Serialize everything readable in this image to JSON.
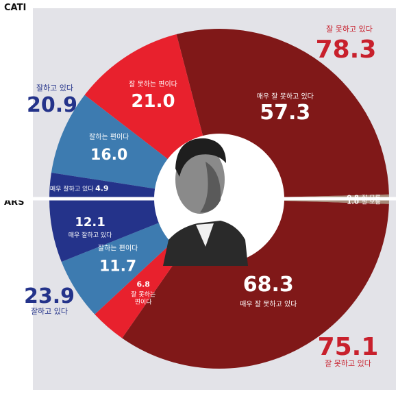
{
  "sections": {
    "top": "CATI",
    "bottom": "ARS"
  },
  "colors": {
    "very_negative": "#801818",
    "negative": "#e8212d",
    "positive": "#3d7bb0",
    "very_positive": "#24338a",
    "unknown": "#a88c7a",
    "background": "#e3e3e8"
  },
  "chart_data": [
    {
      "type": "pie",
      "half": "top",
      "survey": "CATI",
      "slices": [
        {
          "key": "very_negative",
          "label": "매우 잘 못하고 있다",
          "value": 57.3,
          "value_label": "57.3"
        },
        {
          "key": "negative",
          "label": "잘 못하는 편이다",
          "value": 21.0,
          "value_label": "21.0"
        },
        {
          "key": "positive",
          "label": "잘하는 편이다",
          "value": 16.0,
          "value_label": "16.0"
        },
        {
          "key": "very_positive",
          "label": "매우 잘하고 있다",
          "value": 4.9,
          "value_label": "4.9"
        },
        {
          "key": "unknown",
          "label": "잘 모름",
          "value": 0.8,
          "value_label": "0.8"
        }
      ],
      "totals": {
        "negative": {
          "label": "잘 못하고 있다",
          "value": 78.3,
          "value_label": "78.3"
        },
        "positive": {
          "label": "잘하고 있다",
          "value": 20.9,
          "value_label": "20.9"
        }
      }
    },
    {
      "type": "pie",
      "half": "bottom",
      "survey": "ARS",
      "slices": [
        {
          "key": "very_negative",
          "label": "매우 잘 못하고 있다",
          "value": 68.3,
          "value_label": "68.3"
        },
        {
          "key": "negative",
          "label": "잘 못하는 편이다",
          "label_lines": [
            "잘 못하는",
            "편이다"
          ],
          "value": 6.8,
          "value_label": "6.8"
        },
        {
          "key": "positive",
          "label": "잘하는 편이다",
          "value": 11.7,
          "value_label": "11.7"
        },
        {
          "key": "very_positive",
          "label": "매우 잘하고 있다",
          "value": 12.1,
          "value_label": "12.1"
        },
        {
          "key": "unknown",
          "label": "잘 모름",
          "value": 1.0,
          "value_label": "1.0"
        }
      ],
      "totals": {
        "negative": {
          "label": "잘 못하고 있다",
          "value": 75.1,
          "value_label": "75.1"
        },
        "positive": {
          "label": "잘하고 있다",
          "value": 23.9,
          "value_label": "23.9"
        }
      }
    }
  ]
}
